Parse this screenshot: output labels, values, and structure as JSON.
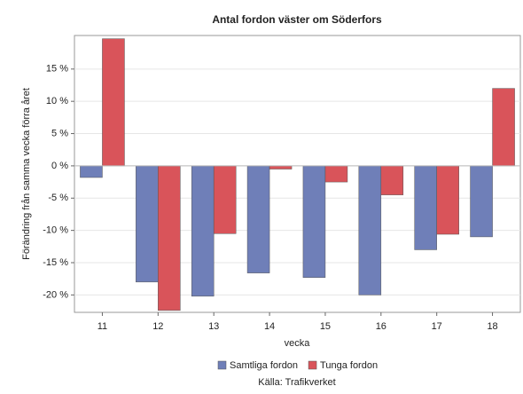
{
  "chart_data": {
    "type": "bar",
    "title": "Antal fordon väster om Söderfors",
    "y_label": "Förändring från samma vecka förra året",
    "x_label": "vecka",
    "source": "Källa: Trafikverket",
    "categories": [
      "11",
      "12",
      "13",
      "14",
      "15",
      "16",
      "17",
      "18"
    ],
    "series": [
      {
        "name": "Samtliga fordon",
        "color": "#6f7fb8",
        "values": [
          -1.8,
          -18,
          -20.2,
          -16.6,
          -17.3,
          -20,
          -13,
          -11
        ]
      },
      {
        "name": "Tunga fordon",
        "color": "#d9545a",
        "values": [
          19.7,
          -22.4,
          -10.5,
          -0.5,
          -2.5,
          -4.5,
          -10.6,
          12
        ]
      }
    ],
    "ylim": [
      -22.7,
      20.2
    ],
    "yticks": [
      {
        "value": -20,
        "label": "-20 %"
      },
      {
        "value": -15,
        "label": "-15 %"
      },
      {
        "value": -10,
        "label": "-10 %"
      },
      {
        "value": -5,
        "label": "-5 %"
      },
      {
        "value": 0,
        "label": "0 %"
      },
      {
        "value": 5,
        "label": "5 %"
      },
      {
        "value": 10,
        "label": "10 %"
      },
      {
        "value": 15,
        "label": "15 %"
      }
    ],
    "grid": true,
    "legend": "bottom"
  }
}
